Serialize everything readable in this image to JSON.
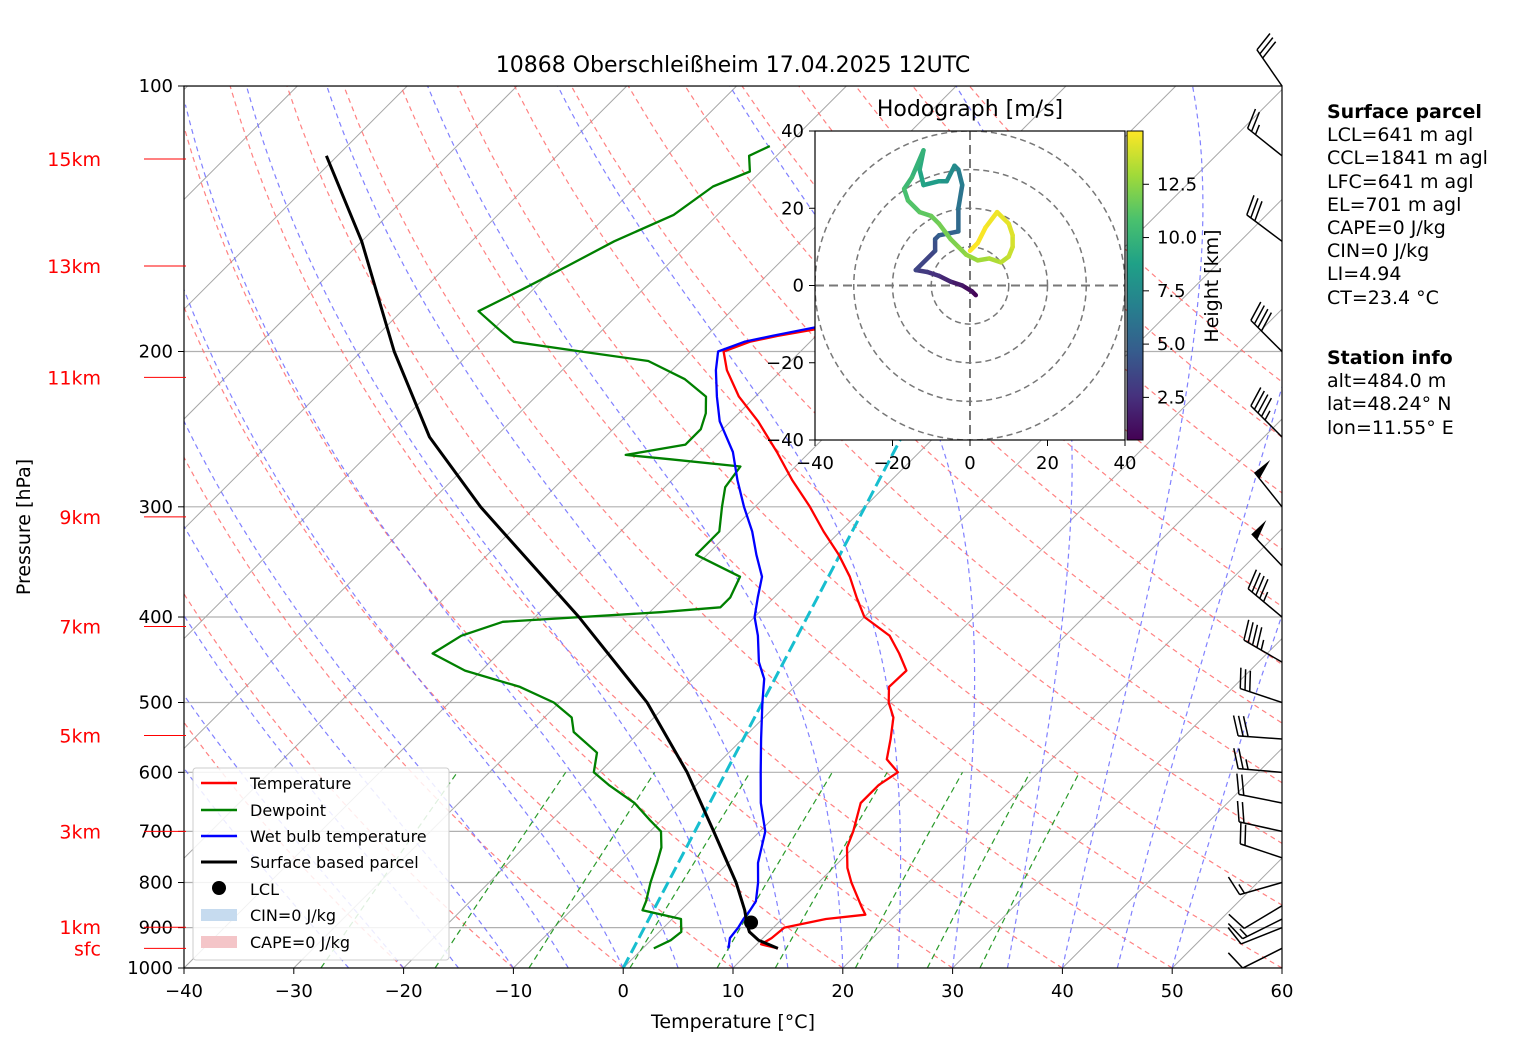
{
  "chart_data": {
    "type": "skew-t",
    "title": "10868 Oberschleißheim 17.04.2025 12UTC",
    "xlabel": "Temperature [°C]",
    "ylabel": "Pressure [hPa]",
    "xlim": [
      -40,
      60
    ],
    "ylim": [
      1000,
      100
    ],
    "x_ticks": [
      "−40",
      "−30",
      "−20",
      "−10",
      "0",
      "10",
      "20",
      "30",
      "40",
      "50",
      "60"
    ],
    "y_ticks": [
      {
        "p": 100,
        "label": "100"
      },
      {
        "p": 200,
        "label": "200"
      },
      {
        "p": 300,
        "label": "300"
      },
      {
        "p": 400,
        "label": "400"
      },
      {
        "p": 500,
        "label": "500"
      },
      {
        "p": 600,
        "label": "600"
      },
      {
        "p": 700,
        "label": "700"
      },
      {
        "p": 800,
        "label": "800"
      },
      {
        "p": 900,
        "label": "900"
      },
      {
        "p": 1000,
        "label": "1000"
      }
    ],
    "height_markers": [
      {
        "p": 121,
        "label": "15km"
      },
      {
        "p": 160,
        "label": "13km"
      },
      {
        "p": 214,
        "label": "11km"
      },
      {
        "p": 308,
        "label": "9km"
      },
      {
        "p": 410,
        "label": "7km"
      },
      {
        "p": 545,
        "label": "5km"
      },
      {
        "p": 700,
        "label": "3km"
      },
      {
        "p": 899,
        "label": "1km"
      },
      {
        "p": 950,
        "label": "sfc"
      }
    ],
    "legend": {
      "placement": "lower-left",
      "entries": [
        {
          "label": "Temperature",
          "color": "#ff0000",
          "kind": "line"
        },
        {
          "label": "Dewpoint",
          "color": "#008000",
          "kind": "line"
        },
        {
          "label": "Wet bulb temperature",
          "color": "#0000ff",
          "kind": "line"
        },
        {
          "label": "Surface based parcel",
          "color": "#000000",
          "kind": "line"
        },
        {
          "label": "LCL",
          "color": "#000000",
          "kind": "marker"
        },
        {
          "label": "CIN=0 J/kg",
          "color": "#c6dbef",
          "kind": "patch"
        },
        {
          "label": "CAPE=0 J/kg",
          "color": "#f4c5c8",
          "kind": "patch"
        }
      ]
    },
    "series": [
      {
        "name": "Temperature",
        "color": "#ff0000",
        "points": [
          [
            950,
            12.3
          ],
          [
            940,
            10.4
          ],
          [
            925,
            10.8
          ],
          [
            900,
            11.0
          ],
          [
            880,
            14.0
          ],
          [
            870,
            17.2
          ],
          [
            850,
            16.0
          ],
          [
            800,
            13.0
          ],
          [
            770,
            11.3
          ],
          [
            730,
            9.4
          ],
          [
            700,
            8.5
          ],
          [
            650,
            6.6
          ],
          [
            620,
            6.6
          ],
          [
            600,
            7.2
          ],
          [
            580,
            5.0
          ],
          [
            550,
            3.5
          ],
          [
            520,
            1.8
          ],
          [
            500,
            0.0
          ],
          [
            480,
            -1.4
          ],
          [
            460,
            -1.3
          ],
          [
            440,
            -3.5
          ],
          [
            420,
            -6.0
          ],
          [
            400,
            -10.0
          ],
          [
            380,
            -12.5
          ],
          [
            360,
            -15.0
          ],
          [
            340,
            -18.0
          ],
          [
            320,
            -21.5
          ],
          [
            300,
            -25.0
          ],
          [
            280,
            -29.0
          ],
          [
            260,
            -33.0
          ],
          [
            240,
            -37.5
          ],
          [
            225,
            -41.5
          ],
          [
            210,
            -45.0
          ],
          [
            200,
            -47.0
          ],
          [
            195,
            -45.5
          ],
          [
            192,
            -43.5
          ],
          [
            188,
            -40.0
          ],
          [
            183,
            -36.5
          ],
          [
            175,
            -37.0
          ],
          [
            165,
            -38.5
          ],
          [
            158,
            -40.5
          ],
          [
            150,
            -41.0
          ],
          [
            140,
            -42.5
          ],
          [
            130,
            -46.0
          ],
          [
            125,
            -47.0
          ],
          [
            120,
            -49.5
          ],
          [
            117,
            -49.5
          ],
          [
            115,
            -50.8
          ]
        ]
      },
      {
        "name": "Dewpoint",
        "color": "#008000",
        "points": [
          [
            950,
            1.0
          ],
          [
            930,
            1.8
          ],
          [
            910,
            2.0
          ],
          [
            880,
            0.8
          ],
          [
            860,
            -3.5
          ],
          [
            840,
            -4.0
          ],
          [
            800,
            -5.3
          ],
          [
            760,
            -6.5
          ],
          [
            730,
            -7.5
          ],
          [
            700,
            -9.0
          ],
          [
            680,
            -11.0
          ],
          [
            650,
            -14.0
          ],
          [
            620,
            -18.0
          ],
          [
            600,
            -20.5
          ],
          [
            570,
            -22.0
          ],
          [
            540,
            -26.0
          ],
          [
            520,
            -27.5
          ],
          [
            500,
            -30.5
          ],
          [
            480,
            -35.0
          ],
          [
            460,
            -41.5
          ],
          [
            440,
            -46.0
          ],
          [
            420,
            -45.0
          ],
          [
            405,
            -42.5
          ],
          [
            395,
            -29.0
          ],
          [
            390,
            -24.0
          ],
          [
            380,
            -24.0
          ],
          [
            360,
            -25.0
          ],
          [
            340,
            -31.0
          ],
          [
            320,
            -31.0
          ],
          [
            300,
            -33.0
          ],
          [
            285,
            -34.5
          ],
          [
            270,
            -35.0
          ],
          [
            265,
            -42.0
          ],
          [
            262,
            -46.5
          ],
          [
            255,
            -42.0
          ],
          [
            245,
            -42.0
          ],
          [
            235,
            -43.0
          ],
          [
            225,
            -44.5
          ],
          [
            215,
            -48.0
          ],
          [
            205,
            -53.0
          ],
          [
            200,
            -60.0
          ],
          [
            195,
            -67.0
          ],
          [
            190,
            -69.0
          ],
          [
            180,
            -73.0
          ],
          [
            170,
            -71.0
          ],
          [
            160,
            -69.0
          ],
          [
            150,
            -67.0
          ],
          [
            140,
            -64.0
          ],
          [
            130,
            -63.0
          ],
          [
            125,
            -61.0
          ],
          [
            120,
            -62.5
          ],
          [
            117,
            -61.5
          ]
        ]
      },
      {
        "name": "Wet bulb temperature",
        "color": "#0000ff",
        "points": [
          [
            950,
            7.8
          ],
          [
            925,
            7.0
          ],
          [
            900,
            6.8
          ],
          [
            880,
            6.5
          ],
          [
            860,
            6.3
          ],
          [
            840,
            6.0
          ],
          [
            800,
            4.5
          ],
          [
            760,
            2.7
          ],
          [
            700,
            0.5
          ],
          [
            650,
            -2.5
          ],
          [
            600,
            -5.3
          ],
          [
            550,
            -8.3
          ],
          [
            500,
            -11.5
          ],
          [
            470,
            -13.5
          ],
          [
            450,
            -15.5
          ],
          [
            420,
            -18.0
          ],
          [
            400,
            -20.0
          ],
          [
            380,
            -21.5
          ],
          [
            360,
            -23.0
          ],
          [
            340,
            -25.5
          ],
          [
            320,
            -28.0
          ],
          [
            300,
            -31.0
          ],
          [
            280,
            -34.0
          ],
          [
            260,
            -37.0
          ],
          [
            240,
            -41.0
          ],
          [
            225,
            -43.5
          ],
          [
            210,
            -46.0
          ],
          [
            200,
            -47.5
          ],
          [
            195,
            -46.0
          ],
          [
            192,
            -44.0
          ],
          [
            188,
            -41.0
          ],
          [
            183,
            -37.5
          ],
          [
            175,
            -38.0
          ],
          [
            165,
            -39.5
          ],
          [
            158,
            -41.5
          ],
          [
            150,
            -42.0
          ],
          [
            140,
            -43.5
          ],
          [
            130,
            -47.0
          ],
          [
            125,
            -48.0
          ],
          [
            120,
            -50.5
          ],
          [
            117,
            -50.5
          ],
          [
            115,
            -51.5
          ]
        ]
      },
      {
        "name": "Surface based parcel",
        "color": "#000000",
        "points": [
          [
            950,
            12.3
          ],
          [
            930,
            9.8
          ],
          [
            910,
            8.2
          ],
          [
            890,
            7.2
          ],
          [
            860,
            5.8
          ],
          [
            800,
            2.5
          ],
          [
            700,
            -4.2
          ],
          [
            600,
            -12.0
          ],
          [
            500,
            -22.0
          ],
          [
            400,
            -36.0
          ],
          [
            300,
            -55.0
          ],
          [
            250,
            -66.0
          ],
          [
            200,
            -77.0
          ],
          [
            150,
            -90.0
          ],
          [
            120,
            -101.0
          ]
        ]
      }
    ],
    "lcl_point": [
      888,
      7.5
    ],
    "ccl_line": {
      "from": [
        1000,
        0
      ],
      "to": [
        125,
        -34.5
      ]
    },
    "wind_barbs": [
      {
        "p": 950,
        "u": -4,
        "v": -2
      },
      {
        "p": 900,
        "u": -5,
        "v": -2
      },
      {
        "p": 880,
        "u": -6,
        "v": -3
      },
      {
        "p": 850,
        "u": -5,
        "v": -3
      },
      {
        "p": 800,
        "u": -7,
        "v": -2
      },
      {
        "p": 750,
        "u": -9,
        "v": 3
      },
      {
        "p": 700,
        "u": -9,
        "v": 2
      },
      {
        "p": 650,
        "u": -10,
        "v": 2
      },
      {
        "p": 600,
        "u": -12,
        "v": 1
      },
      {
        "p": 550,
        "u": -14,
        "v": 1
      },
      {
        "p": 500,
        "u": -15,
        "v": 5
      },
      {
        "p": 450,
        "u": -19,
        "v": 11
      },
      {
        "p": 400,
        "u": -18,
        "v": 15
      },
      {
        "p": 350,
        "u": -17,
        "v": 18
      },
      {
        "p": 300,
        "u": -16,
        "v": 20
      },
      {
        "p": 250,
        "u": -16,
        "v": 16
      },
      {
        "p": 200,
        "u": -14,
        "v": 14
      },
      {
        "p": 150,
        "u": -12,
        "v": 9
      },
      {
        "p": 120,
        "u": -10,
        "v": 8
      },
      {
        "p": 100,
        "u": -9,
        "v": 13
      }
    ]
  },
  "hodograph": {
    "title": "Hodograph [m/s]",
    "xlim": [
      -40,
      40
    ],
    "ylim": [
      -40,
      40
    ],
    "ticks": [
      "−40",
      "−20",
      "0",
      "20",
      "40"
    ],
    "x_ticks": [
      "−40",
      "−20",
      "0",
      "20",
      "40"
    ],
    "y_ticks": [
      "40",
      "20",
      "0",
      "−20",
      "−40"
    ],
    "rings": [
      10,
      20,
      30,
      40
    ],
    "colorbar_label": "Height [km]",
    "colorbar_ticks": [
      "2.5",
      "5.0",
      "7.5",
      "10.0",
      "12.5"
    ],
    "colorbar_range": [
      0.5,
      15
    ],
    "colormap": [
      "#440154",
      "#46327e",
      "#365c8d",
      "#277f8e",
      "#1fa187",
      "#4ac16d",
      "#a0da39",
      "#fde725"
    ],
    "points": [
      [
        0.5,
        1.5,
        -2.5
      ],
      [
        0.8,
        0.5,
        -1.5
      ],
      [
        1.2,
        -2.0,
        0.0
      ],
      [
        1.8,
        -5.0,
        1.0
      ],
      [
        2.3,
        -8.0,
        2.5
      ],
      [
        2.8,
        -11.0,
        3.5
      ],
      [
        3.2,
        -14.0,
        4.0
      ],
      [
        3.8,
        -9.0,
        9.0
      ],
      [
        4.2,
        -9.0,
        12.0
      ],
      [
        4.7,
        -8.0,
        13.0
      ],
      [
        5.2,
        -3.0,
        14.0
      ],
      [
        5.8,
        -3.0,
        20.0
      ],
      [
        6.3,
        -2.0,
        26.0
      ],
      [
        6.8,
        -3.0,
        30.0
      ],
      [
        7.2,
        -4.0,
        31.0
      ],
      [
        7.8,
        -6.0,
        27.0
      ],
      [
        8.3,
        -8.0,
        27.0
      ],
      [
        8.8,
        -12.0,
        26.0
      ],
      [
        9.2,
        -13.0,
        30.0
      ],
      [
        9.7,
        -12.0,
        35.0
      ],
      [
        10.1,
        -15.0,
        28.0
      ],
      [
        10.5,
        -17.0,
        25.0
      ],
      [
        10.9,
        -16.0,
        22.0
      ],
      [
        11.2,
        -13.0,
        19.0
      ],
      [
        11.5,
        -10.0,
        18.0
      ],
      [
        11.8,
        -8.0,
        16.0
      ],
      [
        12.0,
        -5.0,
        12.0
      ],
      [
        12.2,
        -3.0,
        10.0
      ],
      [
        12.5,
        -1.0,
        8.0
      ],
      [
        12.8,
        2.0,
        6.5
      ],
      [
        13.1,
        5.0,
        7.0
      ],
      [
        13.4,
        8.0,
        6.0
      ],
      [
        13.7,
        10.0,
        7.5
      ],
      [
        14.0,
        11.0,
        10.0
      ],
      [
        14.2,
        11.0,
        13.0
      ],
      [
        14.4,
        10.0,
        16.0
      ],
      [
        14.6,
        7.0,
        19.0
      ],
      [
        14.8,
        4.0,
        15.0
      ],
      [
        15.0,
        2.0,
        11.0
      ],
      [
        15.1,
        0.0,
        9.0
      ]
    ]
  },
  "side_panel": {
    "parcel": {
      "heading": "Surface parcel",
      "lines": [
        "LCL=641 m agl",
        "CCL=1841 m agl",
        "LFC=641 m agl",
        "EL=701 m agl",
        "CAPE=0 J/kg",
        "CIN=0 J/kg",
        "LI=4.94",
        "CT=23.4 °C"
      ]
    },
    "station": {
      "heading": "Station info",
      "lines": [
        "alt=484.0 m",
        "lat=48.24° N",
        "lon=11.55° E"
      ]
    }
  }
}
